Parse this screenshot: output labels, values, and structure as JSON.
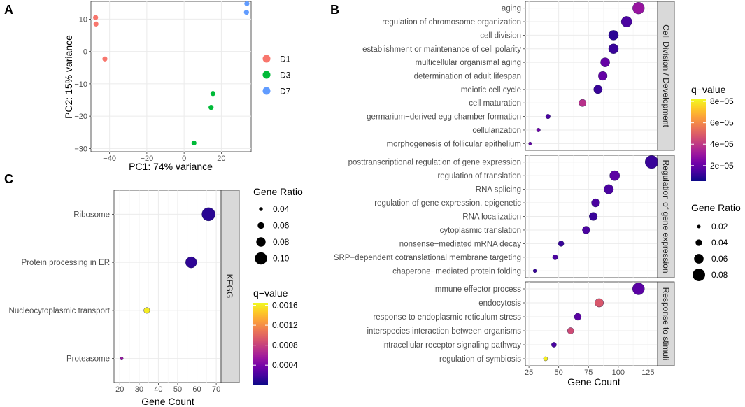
{
  "panels": {
    "A": "A",
    "B": "B",
    "C": "C"
  },
  "colors": {
    "D1": "#f8766d",
    "D3": "#00ba38",
    "D7": "#619cff",
    "viridis_plasma": [
      "#0d0887",
      "#46039f",
      "#7201a8",
      "#9c179e",
      "#bd3786",
      "#d8576b",
      "#ed7953",
      "#fb9f3a",
      "#fdca26",
      "#f0f921"
    ]
  },
  "chart_data": [
    {
      "id": "A",
      "type": "scatter",
      "xlabel": "PC1: 74% variance",
      "ylabel": "PC2: 15% variance",
      "xlim": [
        -50,
        36
      ],
      "ylim": [
        -31,
        15.5
      ],
      "xticks": [
        -40,
        -20,
        0,
        20
      ],
      "yticks": [
        -30,
        -20,
        -10,
        0,
        10
      ],
      "xtick_labels": [
        "−40",
        "−20",
        "0",
        "20"
      ],
      "ytick_labels": [
        "−30",
        "−20",
        "−10",
        "0",
        "10"
      ],
      "legend": [
        "D1",
        "D3",
        "D7"
      ],
      "series": [
        {
          "name": "D1",
          "points": [
            [
              -47.5,
              10.5
            ],
            [
              -47.3,
              8.5
            ],
            [
              -42.5,
              -2.3
            ]
          ]
        },
        {
          "name": "D3",
          "points": [
            [
              15.5,
              -13.0
            ],
            [
              14.5,
              -17.3
            ],
            [
              5.3,
              -28.3
            ]
          ]
        },
        {
          "name": "D7",
          "points": [
            [
              33.7,
              14.8
            ],
            [
              33.5,
              12.1
            ]
          ]
        }
      ]
    },
    {
      "id": "B",
      "type": "scatter",
      "xlabel": "Gene Count",
      "xlim": [
        22,
        133
      ],
      "xticks": [
        25,
        50,
        75,
        100,
        125
      ],
      "facets": [
        {
          "strip": "Cell Division / Development",
          "terms": [
            {
              "label": "aging",
              "count": 117,
              "ratio": 0.075,
              "q": 3e-05
            },
            {
              "label": "regulation of chromosome organization",
              "count": 107,
              "ratio": 0.068,
              "q": 1.5e-05
            },
            {
              "label": "cell division",
              "count": 96,
              "ratio": 0.062,
              "q": 1e-05
            },
            {
              "label": "establishment or maintenance of cell polarity",
              "count": 96,
              "ratio": 0.062,
              "q": 1.2e-05
            },
            {
              "label": "multicellular organismal aging",
              "count": 89,
              "ratio": 0.058,
              "q": 2e-05
            },
            {
              "label": "determination of adult lifespan",
              "count": 87,
              "ratio": 0.056,
              "q": 2e-05
            },
            {
              "label": "meiotic cell cycle",
              "count": 83,
              "ratio": 0.054,
              "q": 1.2e-05
            },
            {
              "label": "cell maturation",
              "count": 70,
              "ratio": 0.045,
              "q": 3.8e-05
            },
            {
              "label": "germarium−derived egg chamber formation",
              "count": 41,
              "ratio": 0.027,
              "q": 1.5e-05
            },
            {
              "label": "cellularization",
              "count": 33,
              "ratio": 0.022,
              "q": 2.2e-05
            },
            {
              "label": "morphogenesis of follicular epithelium",
              "count": 26,
              "ratio": 0.017,
              "q": 2e-05
            }
          ]
        },
        {
          "strip": "Regulation of gene expression",
          "terms": [
            {
              "label": "posttranscriptional regulation of gene expression",
              "count": 128,
              "ratio": 0.083,
              "q": 1.2e-05
            },
            {
              "label": "regulation of translation",
              "count": 97,
              "ratio": 0.063,
              "q": 1.8e-05
            },
            {
              "label": "RNA splicing",
              "count": 92,
              "ratio": 0.06,
              "q": 1.5e-05
            },
            {
              "label": "regulation of gene expression, epigenetic",
              "count": 81,
              "ratio": 0.052,
              "q": 1.5e-05
            },
            {
              "label": "RNA localization",
              "count": 79,
              "ratio": 0.051,
              "q": 1.2e-05
            },
            {
              "label": "cytoplasmic translation",
              "count": 73,
              "ratio": 0.047,
              "q": 1.5e-05
            },
            {
              "label": "nonsense−mediated mRNA decay",
              "count": 52,
              "ratio": 0.034,
              "q": 1.2e-05
            },
            {
              "label": "SRP−dependent cotranslational membrane targeting",
              "count": 47,
              "ratio": 0.031,
              "q": 1.5e-05
            },
            {
              "label": "chaperone−mediated protein folding",
              "count": 30,
              "ratio": 0.02,
              "q": 1.2e-05
            }
          ]
        },
        {
          "strip": "Response to stimuli",
          "terms": [
            {
              "label": "immune effector process",
              "count": 117,
              "ratio": 0.076,
              "q": 1.8e-05
            },
            {
              "label": "endocytosis",
              "count": 84,
              "ratio": 0.054,
              "q": 4.8e-05
            },
            {
              "label": "response to endoplasmic reticulum stress",
              "count": 66,
              "ratio": 0.043,
              "q": 1.8e-05
            },
            {
              "label": "interspecies interaction between organisms",
              "count": 60,
              "ratio": 0.039,
              "q": 4.5e-05
            },
            {
              "label": "intracellular receptor signaling pathway",
              "count": 46,
              "ratio": 0.03,
              "q": 1.5e-05
            },
            {
              "label": "regulation of symbiosis",
              "count": 39,
              "ratio": 0.025,
              "q": 8e-05
            }
          ]
        }
      ],
      "legend_q": {
        "title": "q−value",
        "range": [
          5.5e-06,
          8.2e-05
        ],
        "ticks": [
          2e-05,
          4e-05,
          6e-05,
          8e-05
        ],
        "tick_labels": [
          "2e−05",
          "4e−05",
          "6e−05",
          "8e−05"
        ]
      },
      "legend_ratio": {
        "title": "Gene Ratio",
        "values": [
          0.02,
          0.04,
          0.06,
          0.08
        ],
        "labels": [
          "0.02",
          "0.04",
          "0.06",
          "0.08"
        ]
      }
    },
    {
      "id": "C",
      "type": "scatter",
      "xlabel": "Gene Count",
      "xlim": [
        17,
        72.5
      ],
      "xticks": [
        20,
        30,
        40,
        50,
        60,
        70
      ],
      "strip": "KEGG",
      "terms": [
        {
          "label": "Ribosome",
          "count": 66,
          "ratio": 0.108,
          "q": 0.0001
        },
        {
          "label": "Protein processing in ER",
          "count": 57,
          "ratio": 0.093,
          "q": 0.00012
        },
        {
          "label": "Nucleocytoplasmic transport",
          "count": 34,
          "ratio": 0.056,
          "q": 0.0016
        },
        {
          "label": "Proteasome",
          "count": 21,
          "ratio": 0.035,
          "q": 0.00055
        }
      ],
      "legend_ratio": {
        "title": "Gene Ratio",
        "values": [
          0.04,
          0.06,
          0.08,
          0.1
        ],
        "labels": [
          "0.04",
          "0.06",
          "0.08",
          "0.10"
        ]
      },
      "legend_q": {
        "title": "q−value",
        "range": [
          1e-05,
          0.00165
        ],
        "ticks": [
          0.0004,
          0.0008,
          0.0012,
          0.0016
        ],
        "tick_labels": [
          "0.0004",
          "0.0008",
          "0.0012",
          "0.0016"
        ]
      }
    }
  ]
}
